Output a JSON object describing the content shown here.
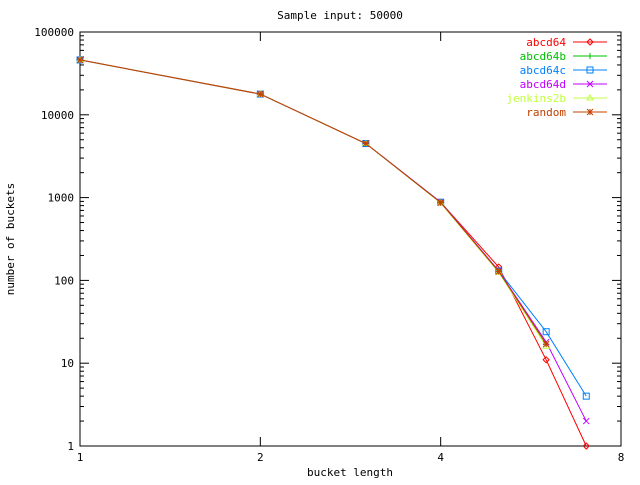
{
  "chart_data": {
    "type": "line",
    "title": "Sample input: 50000",
    "xlabel": "bucket length",
    "ylabel": "number of buckets",
    "xscale": "log",
    "yscale": "log",
    "xlim": [
      1,
      8
    ],
    "ylim": [
      1,
      100000
    ],
    "xticks": [
      "1",
      "2",
      "4",
      "8"
    ],
    "yticks": [
      "1",
      "10",
      "100",
      "1000",
      "10000",
      "100000"
    ],
    "grid": false,
    "legend_position": "top-right",
    "x": [
      1,
      2,
      3,
      4,
      5,
      6,
      7
    ],
    "series": [
      {
        "name": "abcd64",
        "color": "#ff0000",
        "marker": "diamond",
        "values": [
          46000,
          17800,
          4500,
          880,
          145,
          11,
          1
        ]
      },
      {
        "name": "abcd64b",
        "color": "#00c000",
        "marker": "plus",
        "values": [
          46000,
          17800,
          4500,
          880,
          130,
          17,
          null
        ]
      },
      {
        "name": "abcd64c",
        "color": "#0080ff",
        "marker": "square",
        "values": [
          46000,
          17800,
          4500,
          880,
          130,
          24,
          4
        ]
      },
      {
        "name": "abcd64d",
        "color": "#c000ff",
        "marker": "x",
        "values": [
          46000,
          17800,
          4500,
          880,
          130,
          18,
          2
        ]
      },
      {
        "name": "jenkins2b",
        "color": "#c0ff40",
        "marker": "triangle",
        "values": [
          46000,
          17800,
          4500,
          860,
          125,
          16,
          null
        ]
      },
      {
        "name": "random",
        "color": "#c04000",
        "marker": "star",
        "values": [
          46000,
          17800,
          4500,
          870,
          128,
          17,
          null
        ]
      }
    ]
  }
}
